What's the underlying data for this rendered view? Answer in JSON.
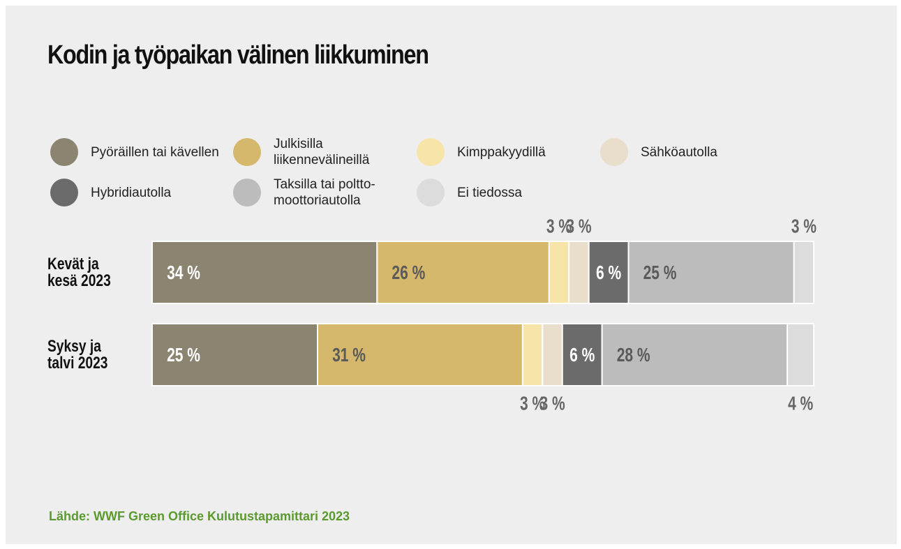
{
  "chart_data": {
    "type": "stacked-bar-horizontal",
    "title": "Kodin ja työpaikan välinen liikkuminen",
    "categories": [
      "Kevät ja kesä 2023",
      "Syksy ja talvi 2023"
    ],
    "xlim": [
      0,
      100
    ],
    "series": [
      {
        "name": "Pyöräillen tai kävellen",
        "color": "#8a8470",
        "values": [
          34,
          25
        ],
        "value_labels": [
          "34 %",
          "25 %"
        ]
      },
      {
        "name": "Julkisilla liikennevälineillä",
        "color": "#d5b86b",
        "values": [
          26,
          31
        ],
        "value_labels": [
          "26 %",
          "31 %"
        ]
      },
      {
        "name": "Kimppakyydillä",
        "color": "#f6e4a9",
        "values": [
          3,
          3
        ],
        "value_labels": [
          "3 %",
          "3 %"
        ]
      },
      {
        "name": "Sähköautolla",
        "color": "#e9ddcc",
        "values": [
          3,
          3
        ],
        "value_labels": [
          "3 %",
          "3 %"
        ]
      },
      {
        "name": "Hybridiautolla",
        "color": "#6b6b6b",
        "values": [
          6,
          6
        ],
        "value_labels": [
          "6 %",
          "6 %"
        ]
      },
      {
        "name": "Taksilla tai poltto-moottoriautolla",
        "color": "#bcbcbc",
        "values": [
          25,
          28
        ],
        "value_labels": [
          "25 %",
          "28 %"
        ]
      },
      {
        "name": "Ei tiedossa",
        "color": "#dcdcdc",
        "values": [
          3,
          4
        ],
        "value_labels": [
          "3 %",
          "4 %"
        ]
      }
    ],
    "source": "Lähde: WWF Green Office Kulutustapamittari 2023"
  }
}
